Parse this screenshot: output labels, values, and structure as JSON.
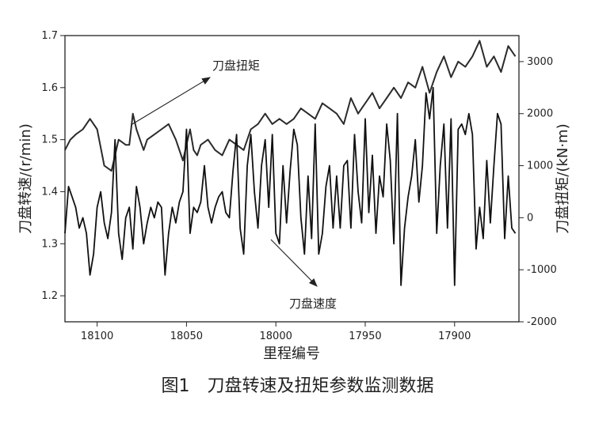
{
  "caption": "图1　刀盘转速及扭矩参数监测数据",
  "chart_data": {
    "type": "line",
    "xlabel": "里程编号",
    "ylabel_left": "刀盘转速/(r/min)",
    "ylabel_right": "刀盘扭矩/(kN·m)",
    "x_reversed": true,
    "xlim": [
      18118,
      17864
    ],
    "x_ticks": [
      18100,
      18050,
      18000,
      17950,
      17900
    ],
    "ylim_left": [
      1.15,
      1.7
    ],
    "y_ticks_left": [
      1.2,
      1.3,
      1.4,
      1.5,
      1.6,
      1.7
    ],
    "ylim_right": [
      -2000,
      3500
    ],
    "y_ticks_right": [
      -2000,
      -1000,
      0,
      1000,
      2000,
      3000
    ],
    "grid": false,
    "annotations": [
      {
        "label": "刀盘扭矩",
        "series": "torque"
      },
      {
        "label": "刀盘速度",
        "series": "speed"
      }
    ],
    "series": [
      {
        "id": "torque",
        "axis": "left",
        "color": "#2b2b2b",
        "x": [
          18118,
          18115,
          18112,
          18108,
          18104,
          18100,
          18096,
          18092,
          18088,
          18084,
          18082,
          18080,
          18078,
          18076,
          18074,
          18072,
          18068,
          18064,
          18060,
          18056,
          18052,
          18050,
          18048,
          18046,
          18044,
          18042,
          18038,
          18034,
          18030,
          18026,
          18022,
          18018,
          18014,
          18010,
          18006,
          18002,
          17998,
          17994,
          17990,
          17986,
          17982,
          17978,
          17974,
          17970,
          17966,
          17962,
          17958,
          17954,
          17950,
          17946,
          17942,
          17938,
          17934,
          17930,
          17926,
          17922,
          17918,
          17914,
          17910,
          17906,
          17902,
          17898,
          17894,
          17890,
          17886,
          17882,
          17878,
          17874,
          17870,
          17866
        ],
        "values": [
          1.48,
          1.5,
          1.51,
          1.52,
          1.54,
          1.52,
          1.45,
          1.44,
          1.5,
          1.49,
          1.49,
          1.55,
          1.52,
          1.5,
          1.48,
          1.5,
          1.51,
          1.52,
          1.53,
          1.5,
          1.46,
          1.49,
          1.52,
          1.48,
          1.47,
          1.49,
          1.5,
          1.48,
          1.47,
          1.5,
          1.49,
          1.48,
          1.52,
          1.53,
          1.55,
          1.53,
          1.54,
          1.53,
          1.54,
          1.56,
          1.55,
          1.54,
          1.57,
          1.56,
          1.55,
          1.53,
          1.58,
          1.55,
          1.57,
          1.59,
          1.56,
          1.58,
          1.6,
          1.58,
          1.61,
          1.6,
          1.64,
          1.59,
          1.63,
          1.66,
          1.62,
          1.65,
          1.64,
          1.66,
          1.69,
          1.64,
          1.66,
          1.63,
          1.68,
          1.66
        ]
      },
      {
        "id": "speed",
        "axis": "right",
        "color": "#111111",
        "x": [
          18118,
          18116,
          18114,
          18112,
          18110,
          18108,
          18106,
          18104,
          18102,
          18100,
          18098,
          18096,
          18094,
          18092,
          18090,
          18088,
          18086,
          18084,
          18082,
          18080,
          18078,
          18076,
          18074,
          18072,
          18070,
          18068,
          18066,
          18064,
          18062,
          18060,
          18058,
          18056,
          18054,
          18052,
          18050,
          18048,
          18046,
          18044,
          18042,
          18040,
          18038,
          18036,
          18034,
          18032,
          18030,
          18028,
          18026,
          18024,
          18022,
          18020,
          18018,
          18016,
          18014,
          18012,
          18010,
          18008,
          18006,
          18004,
          18002,
          18000,
          17998,
          17996,
          17994,
          17992,
          17990,
          17988,
          17986,
          17984,
          17982,
          17980,
          17978,
          17976,
          17974,
          17972,
          17970,
          17968,
          17966,
          17964,
          17962,
          17960,
          17958,
          17956,
          17954,
          17952,
          17950,
          17948,
          17946,
          17944,
          17942,
          17940,
          17938,
          17936,
          17934,
          17932,
          17930,
          17928,
          17926,
          17924,
          17922,
          17920,
          17918,
          17916,
          17914,
          17912,
          17910,
          17908,
          17906,
          17904,
          17902,
          17900,
          17898,
          17896,
          17894,
          17892,
          17890,
          17888,
          17886,
          17884,
          17882,
          17880,
          17878,
          17876,
          17874,
          17872,
          17870,
          17868,
          17866
        ],
        "values": [
          -300,
          600,
          400,
          200,
          -200,
          0,
          -300,
          -1100,
          -700,
          200,
          500,
          -100,
          -400,
          100,
          1500,
          -300,
          -800,
          0,
          200,
          -600,
          600,
          200,
          -500,
          -100,
          200,
          0,
          300,
          200,
          -1100,
          -300,
          200,
          -100,
          300,
          500,
          1700,
          -300,
          200,
          100,
          300,
          1000,
          200,
          -100,
          200,
          400,
          500,
          100,
          0,
          900,
          1600,
          -200,
          -700,
          1000,
          1600,
          500,
          -200,
          1000,
          1500,
          200,
          1600,
          -300,
          -500,
          1000,
          -100,
          900,
          1700,
          1400,
          0,
          -700,
          800,
          -400,
          1800,
          -700,
          -300,
          600,
          1000,
          -200,
          800,
          -200,
          1000,
          1100,
          -200,
          1600,
          500,
          -100,
          1900,
          100,
          1200,
          -300,
          800,
          400,
          1800,
          1100,
          -500,
          2000,
          -1300,
          -200,
          400,
          800,
          1500,
          300,
          1000,
          2400,
          1900,
          2500,
          -300,
          1000,
          1800,
          -200,
          1900,
          -1300,
          1700,
          1800,
          1600,
          2000,
          1600,
          -600,
          200,
          -400,
          1100,
          -100,
          1000,
          2000,
          1800,
          -400,
          800,
          -200,
          -300
        ]
      }
    ]
  }
}
